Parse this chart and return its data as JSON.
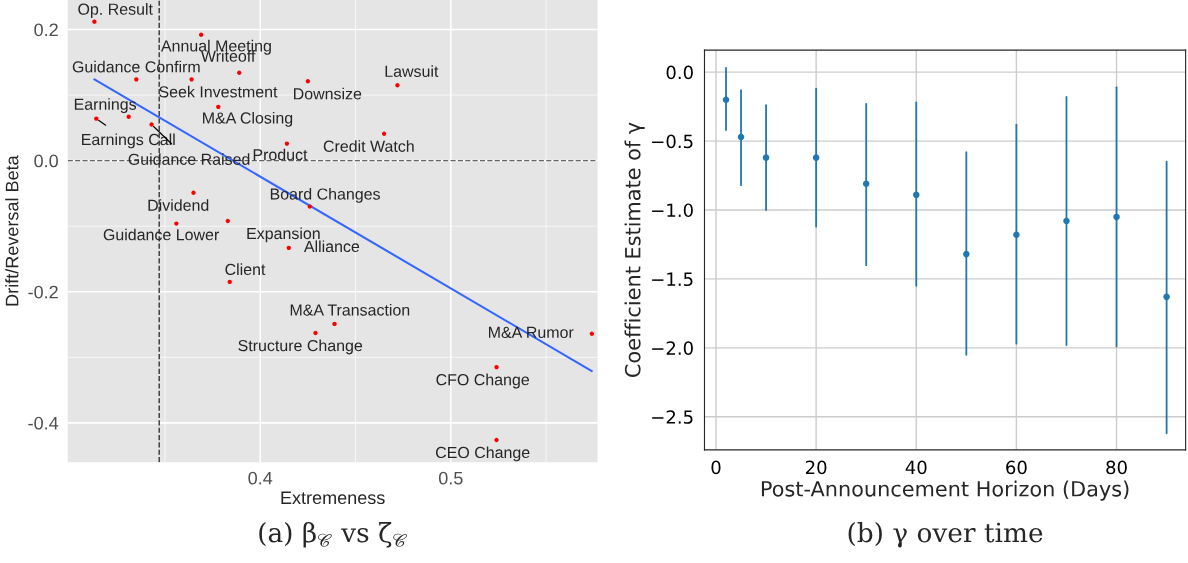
{
  "chart_data": [
    {
      "type": "scatter",
      "title": "(a) β$_{𝒞}$ vs ζ$_{𝒞}$",
      "xlabel": "Extremeness",
      "ylabel": "Drift/Reversal Beta",
      "xlim": [
        0.299,
        0.577
      ],
      "ylim": [
        -0.46,
        0.245
      ],
      "xticks": [
        0.4,
        0.5
      ],
      "yticks": [
        {
          "value": -0.4,
          "label": "-0.4"
        },
        {
          "value": -0.2,
          "label": "-0.2"
        },
        {
          "value": 0.0,
          "label": "0.0"
        },
        {
          "value": 0.2,
          "label": "0.2"
        }
      ],
      "grid": true,
      "series": [
        {
          "type": "scatter",
          "color": "#ff0000",
          "x": [
            0.313,
            0.369,
            0.389,
            0.425,
            0.472,
            0.335,
            0.364,
            0.378,
            0.331,
            0.314,
            0.343,
            0.414,
            0.465,
            0.365,
            0.426,
            0.356,
            0.383,
            0.415,
            0.384,
            0.439,
            0.429,
            0.574,
            0.524,
            0.524
          ],
          "values": [
            0.212,
            0.192,
            0.134,
            0.121,
            0.115,
            0.124,
            0.124,
            0.082,
            0.067,
            0.064,
            0.055,
            0.026,
            0.041,
            -0.049,
            -0.07,
            -0.096,
            -0.092,
            -0.133,
            -0.185,
            -0.249,
            -0.263,
            -0.264,
            -0.315,
            -0.426
          ]
        },
        {
          "type": "line",
          "color": "#3366ff",
          "x": [
            0.313,
            0.574
          ],
          "values": [
            0.124,
            -0.321
          ]
        }
      ],
      "ref_lines": [
        {
          "axis": "x",
          "value": 0.347,
          "line_style": "dashed",
          "color": "#333333"
        },
        {
          "axis": "y",
          "value": 0.0,
          "line_style": "dashed",
          "color": "#666666"
        }
      ],
      "annotations": [
        {
          "text": "Op. Result",
          "x": 0.313,
          "y": 0.212
        },
        {
          "text": "Annual Meeting",
          "x": 0.369,
          "y": 0.192
        },
        {
          "text": "Writeoff",
          "x": 0.389,
          "y": 0.134
        },
        {
          "text": "Downsize",
          "x": 0.425,
          "y": 0.121
        },
        {
          "text": "Lawsuit",
          "x": 0.472,
          "y": 0.115
        },
        {
          "text": "Guidance Confirm",
          "x": 0.335,
          "y": 0.124
        },
        {
          "text": "Seek Investment",
          "x": 0.364,
          "y": 0.124
        },
        {
          "text": "M&A Closing",
          "x": 0.378,
          "y": 0.082
        },
        {
          "text": "Earnings",
          "x": 0.331,
          "y": 0.067
        },
        {
          "text": "Earnings Call",
          "x": 0.314,
          "y": 0.064
        },
        {
          "text": "Guidance Raised",
          "x": 0.343,
          "y": 0.055
        },
        {
          "text": "Product",
          "x": 0.414,
          "y": 0.026
        },
        {
          "text": "Credit Watch",
          "x": 0.465,
          "y": 0.041
        },
        {
          "text": "Dividend",
          "x": 0.365,
          "y": -0.049
        },
        {
          "text": "Board Changes",
          "x": 0.426,
          "y": -0.07
        },
        {
          "text": "Guidance Lower",
          "x": 0.356,
          "y": -0.096
        },
        {
          "text": "Expansion",
          "x": 0.383,
          "y": -0.092
        },
        {
          "text": "Alliance",
          "x": 0.415,
          "y": -0.133
        },
        {
          "text": "Client",
          "x": 0.384,
          "y": -0.185
        },
        {
          "text": "M&A Transaction",
          "x": 0.439,
          "y": -0.249
        },
        {
          "text": "Structure Change",
          "x": 0.429,
          "y": -0.263
        },
        {
          "text": "M&A Rumor",
          "x": 0.574,
          "y": -0.264
        },
        {
          "text": "CFO Change",
          "x": 0.524,
          "y": -0.315
        },
        {
          "text": "CEO Change",
          "x": 0.524,
          "y": -0.426
        }
      ]
    },
    {
      "type": "scatter",
      "title": "(b) γ over time",
      "xlabel": "Post-Announcement Horizon (Days)",
      "ylabel": "Coefficient Estimate of γ",
      "xlim": [
        -2.3,
        93.8
      ],
      "ylim": [
        -2.74,
        0.16
      ],
      "xticks": [
        0,
        20,
        40,
        60,
        80
      ],
      "yticks": [
        {
          "value": 0.0,
          "label": "0.0"
        },
        {
          "value": -0.5,
          "label": "−0.5"
        },
        {
          "value": -1.0,
          "label": "−1.0"
        },
        {
          "value": -1.5,
          "label": "−1.5"
        },
        {
          "value": -2.0,
          "label": "−2.0"
        },
        {
          "value": -2.5,
          "label": "−2.5"
        }
      ],
      "grid": true,
      "x": [
        2,
        5,
        10,
        20,
        30,
        40,
        50,
        60,
        70,
        80,
        90
      ],
      "color": "#1f77b4",
      "values": [
        -0.2,
        -0.47,
        -0.62,
        -0.62,
        -0.81,
        -0.89,
        -1.32,
        -1.18,
        -1.08,
        -1.05,
        -1.63
      ],
      "errors": [
        [
          -0.42,
          0.03
        ],
        [
          -0.82,
          -0.13
        ],
        [
          -1.0,
          -0.24
        ],
        [
          -1.12,
          -0.12
        ],
        [
          -1.4,
          -0.23
        ],
        [
          -1.55,
          -0.22
        ],
        [
          -2.05,
          -0.58
        ],
        [
          -1.97,
          -0.38
        ],
        [
          -1.98,
          -0.18
        ],
        [
          -1.99,
          -0.11
        ],
        [
          -2.62,
          -0.65
        ]
      ]
    }
  ]
}
